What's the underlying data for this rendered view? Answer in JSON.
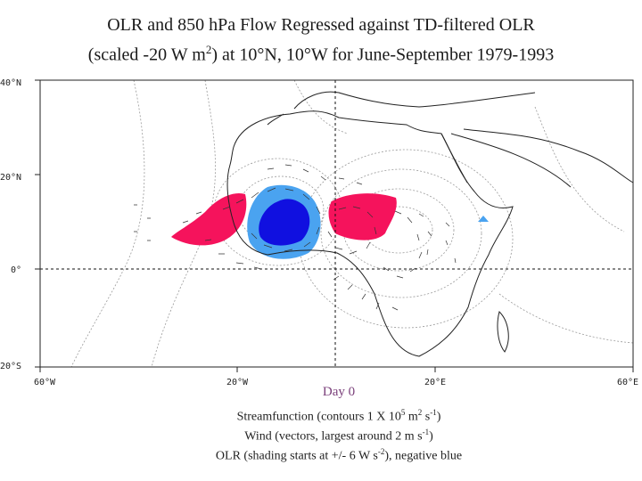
{
  "title": {
    "line1": "OLR and 850 hPa Flow Regressed against TD-filtered OLR",
    "line2_a": "(scaled -20 W m",
    "line2_sup": "2",
    "line2_b": ") at 10°N, 10°W for June-September 1979-1993"
  },
  "map": {
    "lon_labels": [
      "60°W",
      "20°W",
      "20°E",
      "60°E"
    ],
    "lat_labels": [
      "40°N",
      "20°N",
      "0°",
      "20°S"
    ],
    "lon_range": [
      -60,
      60
    ],
    "lat_range": [
      -20,
      40
    ],
    "reference_lines": [
      "equator",
      "10°W meridian"
    ],
    "olr_positive_color": "#f5135c",
    "olr_negative_color": "#1010e0",
    "olr_negative_light_color": "#4aa3f0"
  },
  "caption": {
    "day": "Day 0",
    "line1_a": "Streamfunction (contours 1 X 10",
    "line1_sup1": "5",
    "line1_b": " m",
    "line1_sup2": "2",
    "line1_c": " s",
    "line1_sup3": "-1",
    "line1_d": ")",
    "line2_a": "Wind (vectors, largest around 2 m s",
    "line2_sup": "-1",
    "line2_b": ")",
    "line3_a": "OLR (shading starts at +/- 6 W s",
    "line3_sup": "-2",
    "line3_b": "), negative blue"
  }
}
